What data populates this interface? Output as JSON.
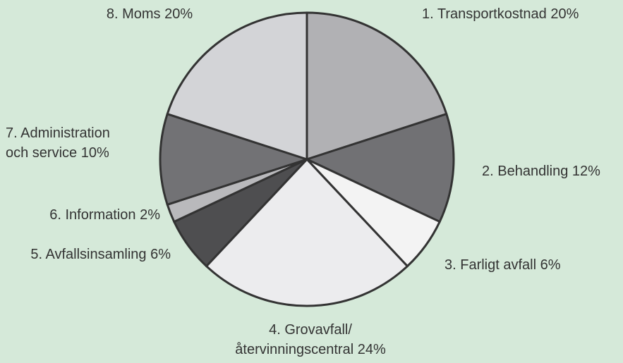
{
  "chart_data": {
    "type": "pie",
    "categories": [
      "1. Transportkostnad",
      "2. Behandling",
      "3. Farligt avfall",
      "4. Grovavfall/\nåtervinningscentral",
      "5. Avfallsinsamling",
      "6. Information",
      "7. Administration\noch service",
      "8. Moms"
    ],
    "values": [
      20,
      12,
      6,
      24,
      6,
      2,
      10,
      20
    ],
    "value_labels": [
      "20%",
      "12%",
      "6%",
      "24%",
      "6%",
      "2%",
      "10%",
      "20%"
    ],
    "colors": [
      "#b1b1b4",
      "#717174",
      "#f3f3f3",
      "#ececee",
      "#4e4e50",
      "#b9b9bc",
      "#727275",
      "#d3d4d7"
    ]
  }
}
